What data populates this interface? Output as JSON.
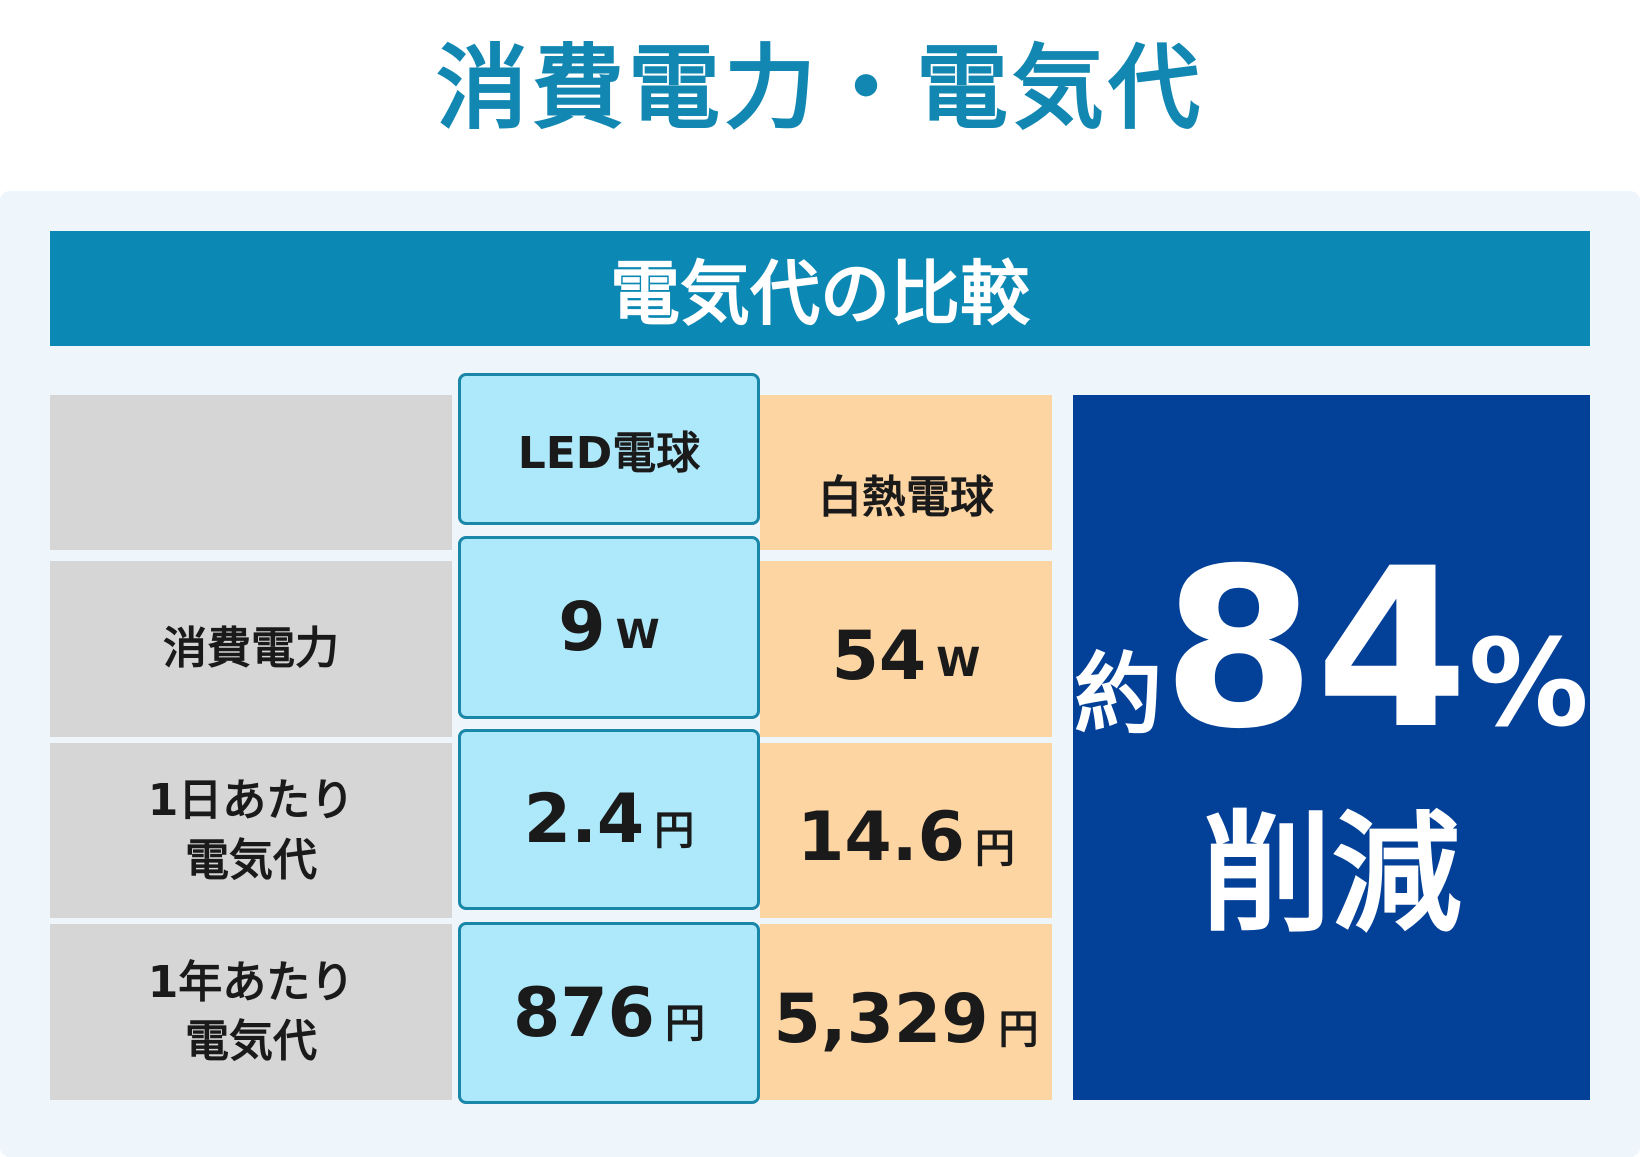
{
  "title": "消費電力・電気代",
  "panel": {
    "heading": "電気代の比較",
    "columns": [
      "LED電球",
      "白熱電球"
    ],
    "rows": [
      {
        "label": [
          "消費電力"
        ],
        "cells": [
          {
            "number": "9",
            "unit": "W"
          },
          {
            "number": "54",
            "unit": "W"
          }
        ]
      },
      {
        "label": [
          "1日あたり",
          "電気代"
        ],
        "cells": [
          {
            "number": "2.4",
            "unit": "円"
          },
          {
            "number": "14.6",
            "unit": "円"
          }
        ]
      },
      {
        "label": [
          "1年あたり",
          "電気代"
        ],
        "cells": [
          {
            "number": "876",
            "unit": "円"
          },
          {
            "number": "5,329",
            "unit": "円"
          }
        ]
      }
    ],
    "summary": {
      "prefix": "約",
      "number": "84",
      "unit": "%",
      "suffix": "削減"
    }
  }
}
